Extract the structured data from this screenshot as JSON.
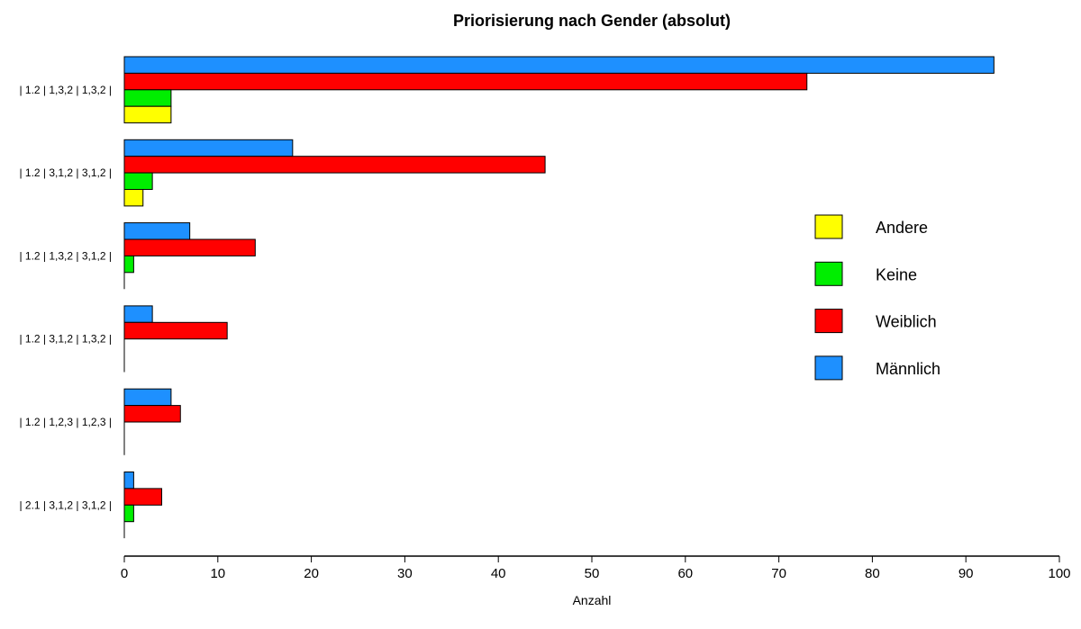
{
  "chart_data": {
    "type": "bar",
    "orientation": "horizontal",
    "title": "Priorisierung nach Gender (absolut)",
    "xlabel": "Anzahl",
    "ylabel": "",
    "xlim": [
      0,
      100
    ],
    "xticks": [
      0,
      10,
      20,
      30,
      40,
      50,
      60,
      70,
      80,
      90,
      100
    ],
    "categories": [
      "| 1.2 | 1,3,2 | 1,3,2 |",
      "| 1.2 | 3,1,2 | 3,1,2 |",
      "| 1.2 | 1,3,2 | 3,1,2 |",
      "| 1.2 | 3,1,2 | 1,3,2 |",
      "| 1.2 | 1,2,3 | 1,2,3 |",
      "| 2.1 | 3,1,2 | 3,1,2 |"
    ],
    "series": [
      {
        "name": "Männlich",
        "color": "#1E90FF",
        "values": [
          93,
          18,
          7,
          3,
          5,
          1
        ]
      },
      {
        "name": "Weiblich",
        "color": "#FF0000",
        "values": [
          73,
          45,
          14,
          11,
          6,
          4
        ]
      },
      {
        "name": "Keine",
        "color": "#00EE00",
        "values": [
          5,
          3,
          1,
          0,
          0,
          1
        ]
      },
      {
        "name": "Andere",
        "color": "#FFFF00",
        "values": [
          5,
          2,
          0,
          0,
          0,
          0
        ]
      }
    ],
    "legend": {
      "placement": "right",
      "order": [
        "Andere",
        "Keine",
        "Weiblich",
        "Männlich"
      ]
    },
    "grid": false
  }
}
